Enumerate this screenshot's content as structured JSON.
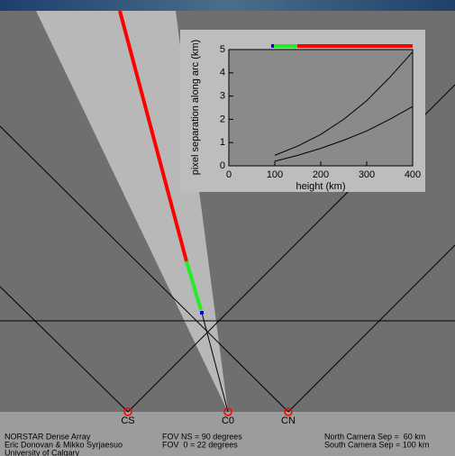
{
  "chart_data": {
    "type": "line",
    "ylabel": "pixel separation along arc (km)",
    "xlabel": "height (km)",
    "x": [
      100,
      150,
      200,
      250,
      300,
      350,
      400
    ],
    "series": [
      {
        "color": "#000000",
        "values": [
          0.45,
          0.85,
          1.35,
          2.0,
          2.8,
          3.8,
          4.9
        ]
      },
      {
        "color": "#000000",
        "values": [
          0.2,
          0.45,
          0.75,
          1.1,
          1.5,
          2.0,
          2.55
        ]
      }
    ],
    "xlim": [
      0,
      400
    ],
    "ylim": [
      0,
      5
    ],
    "xticks": [
      0,
      100,
      200,
      300,
      400
    ],
    "yticks": [
      0,
      1,
      2,
      3,
      4,
      5
    ]
  },
  "cameras": [
    "CS",
    "C0",
    "CN"
  ],
  "footer": {
    "left": [
      "NORSTAR Dense Array",
      "Eric Donovan & Mikko Syrjaesuo",
      "University of Calgary"
    ],
    "middle": [
      "FOV NS = 90 degrees",
      "FOV  0 = 22 degrees"
    ],
    "right": [
      "North Camera Sep =  60 km",
      "South Camera Sep = 100 km"
    ]
  }
}
